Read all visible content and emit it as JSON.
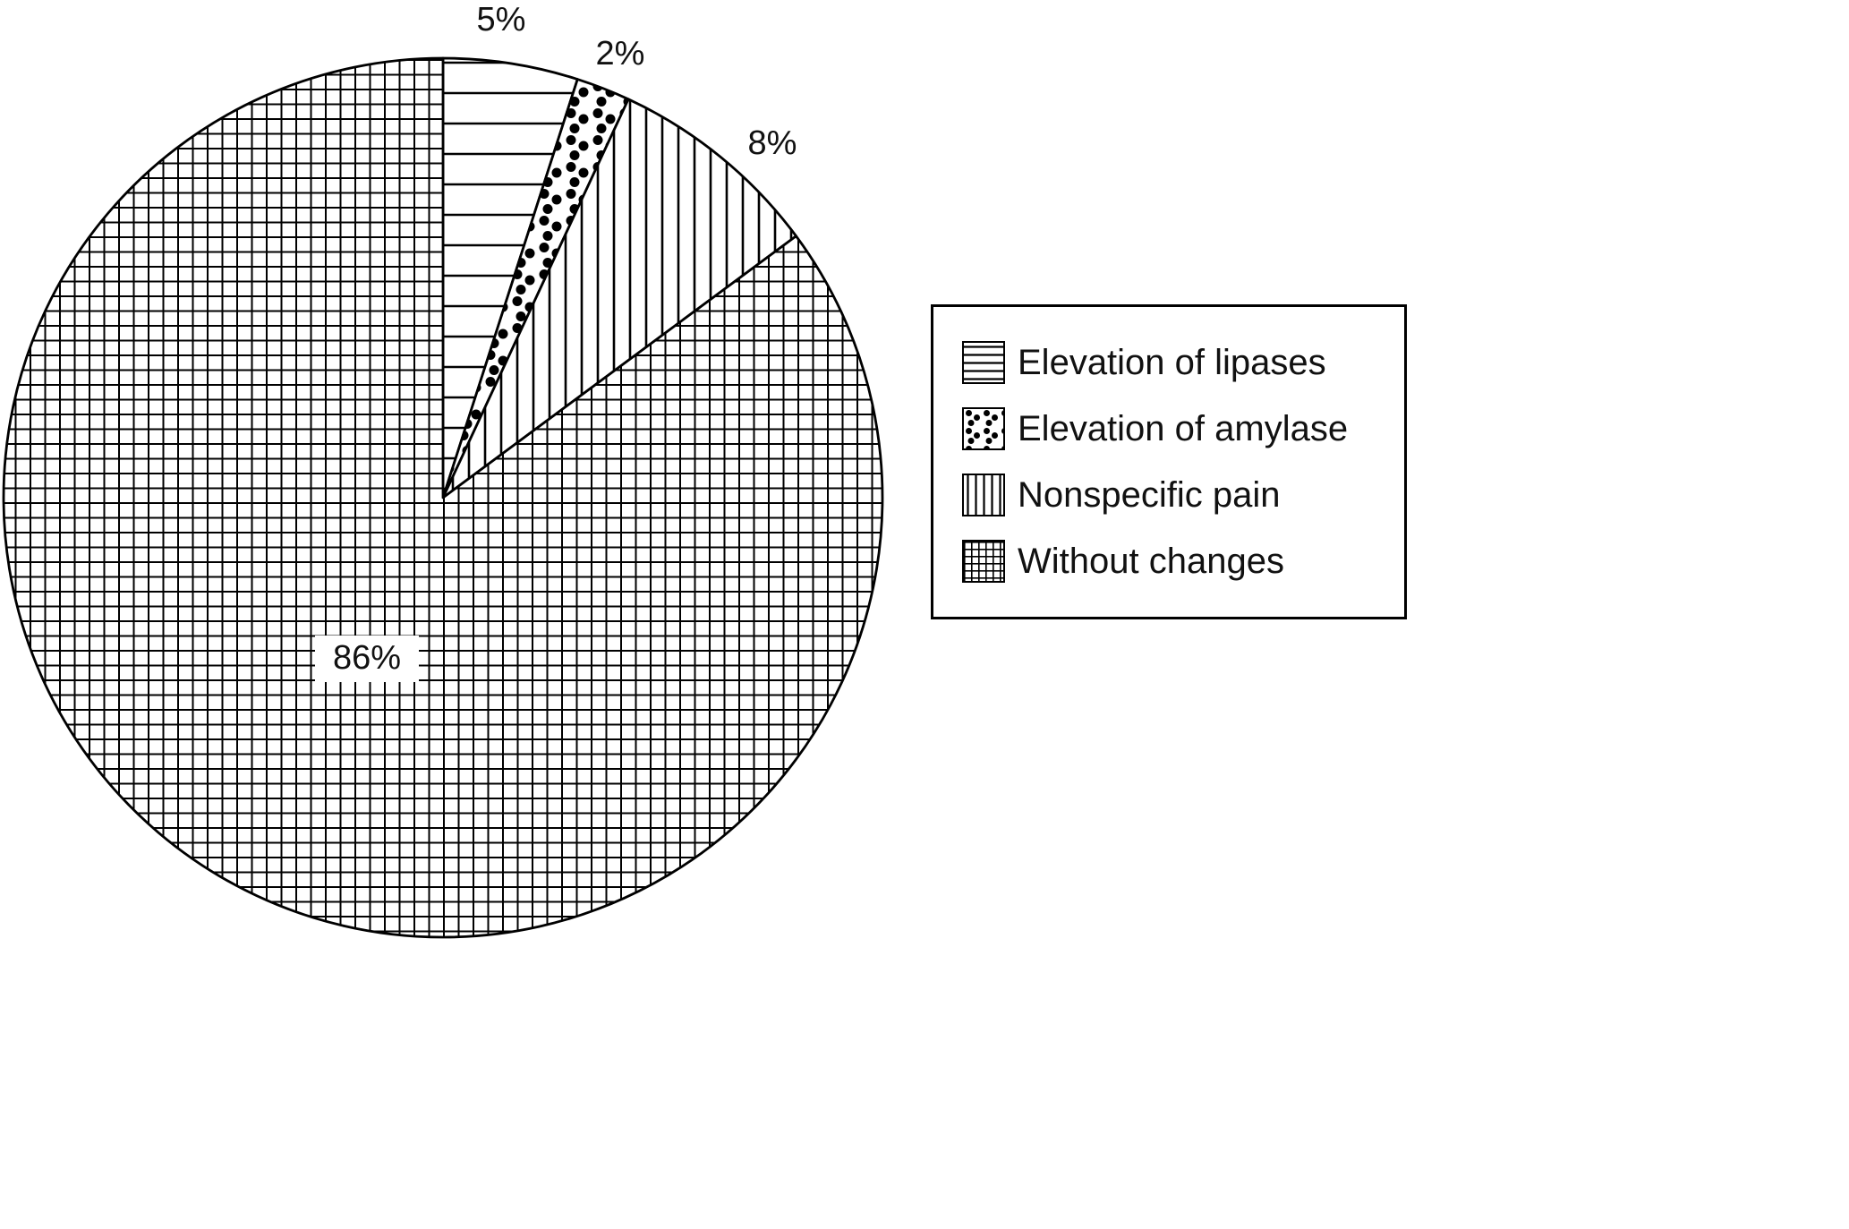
{
  "chart_data": {
    "type": "pie",
    "title": "",
    "labels": [
      "Elevation of lipases",
      "Elevation of amylase",
      "Nonspecific pain",
      "Without changes"
    ],
    "values": [
      5,
      2,
      8,
      86
    ],
    "unit": "%",
    "value_labels": [
      "5%",
      "2%",
      "8%",
      "86%"
    ],
    "start_angle_deg": 0,
    "direction": "clockwise",
    "patterns": [
      "horizontal-lines",
      "dots",
      "vertical-lines",
      "grid"
    ],
    "legend_position": "right",
    "grid": false,
    "colors": {
      "foreground": "#000000",
      "background": "#ffffff"
    }
  }
}
